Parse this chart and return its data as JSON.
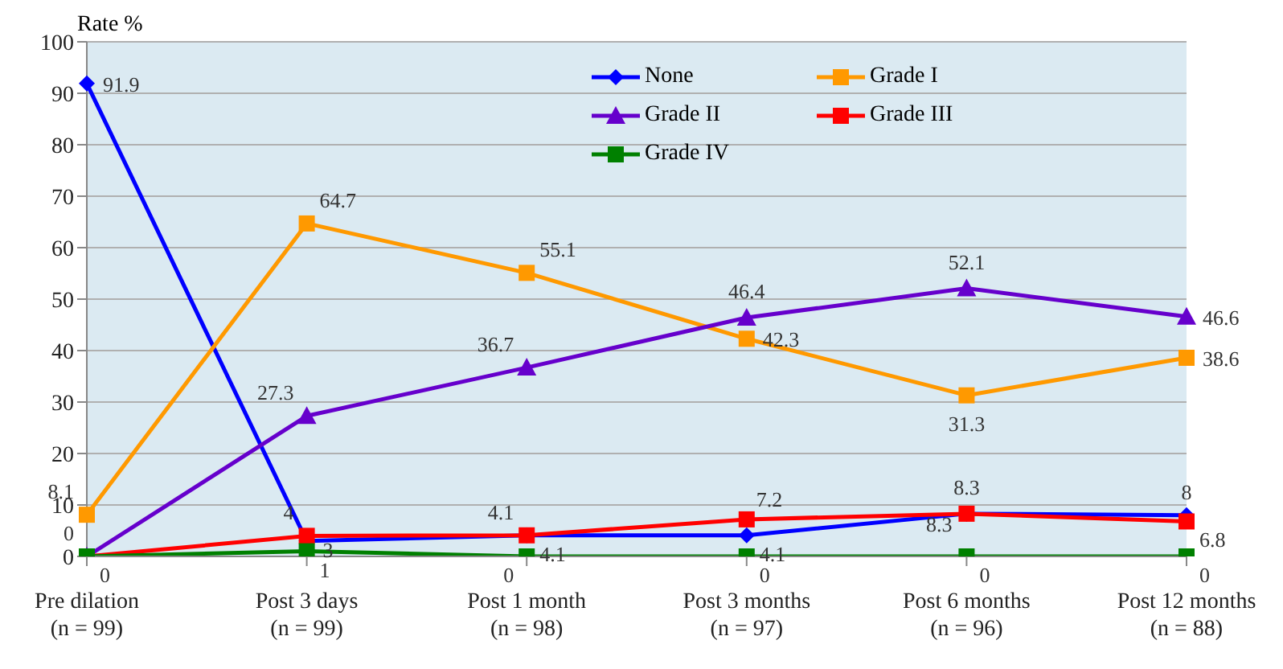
{
  "chart_data": {
    "type": "line",
    "ylabel": "Rate %",
    "categories": [
      "Pre dilation\n(n = 99)",
      "Post 3 days\n(n = 99)",
      "Post 1 month\n(n = 98)",
      "Post 3 months\n(n = 97)",
      "Post 6 months\n(n = 96)",
      "Post 12 months\n(n = 88)"
    ],
    "series": [
      {
        "name": "None",
        "color": "#0000ff",
        "marker": "diamond",
        "values": [
          91.9,
          3,
          4.1,
          4.1,
          8.3,
          8
        ]
      },
      {
        "name": "Grade I",
        "color": "#ff9900",
        "marker": "square",
        "values": [
          8.1,
          64.7,
          55.1,
          42.3,
          31.3,
          38.6
        ]
      },
      {
        "name": "Grade II",
        "color": "#6600cc",
        "marker": "triangle",
        "values": [
          0,
          27.3,
          36.7,
          46.4,
          52.1,
          46.6
        ]
      },
      {
        "name": "Grade III",
        "color": "#ff0000",
        "marker": "square",
        "values": [
          0,
          4,
          4.1,
          7.2,
          8.3,
          6.8
        ],
        "value_labels": [
          null,
          "4",
          "4.1",
          "7.2",
          "8.3",
          "6.8"
        ]
      },
      {
        "name": "Grade IV",
        "color": "#008000",
        "marker": "square",
        "values": [
          0,
          1,
          0,
          0,
          0,
          0
        ]
      }
    ],
    "ylim": [
      0,
      100
    ],
    "yticks": [
      0,
      10,
      20,
      30,
      40,
      50,
      60,
      70,
      80,
      90,
      100
    ],
    "grid": "y",
    "legend": "top",
    "data_labels": true
  }
}
